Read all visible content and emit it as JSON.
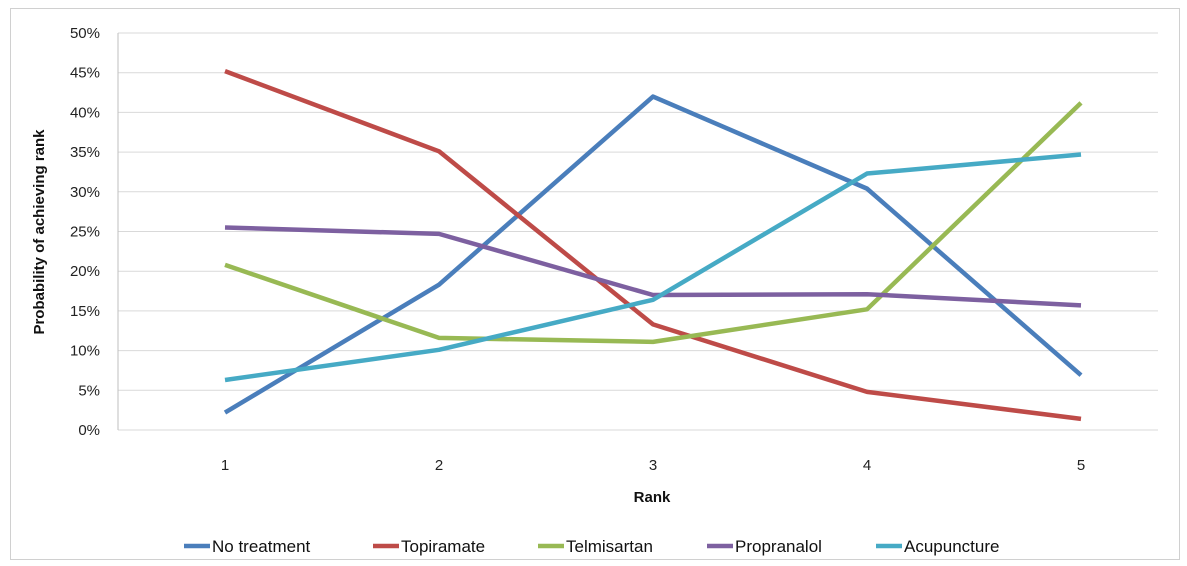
{
  "chart_data": {
    "type": "line",
    "xlabel": "Rank",
    "ylabel": "Probability of achieving rank",
    "x": [
      1,
      2,
      3,
      4,
      5
    ],
    "ylim": [
      0,
      50
    ],
    "yticks": [
      "0%",
      "5%",
      "10%",
      "15%",
      "20%",
      "25%",
      "30%",
      "35%",
      "40%",
      "45%",
      "50%"
    ],
    "xticks": [
      "1",
      "2",
      "3",
      "4",
      "5"
    ],
    "grid": "horizontal",
    "legend_position": "bottom",
    "series": [
      {
        "name": "No treatment",
        "color": "#4a7ebb",
        "values": [
          2.2,
          18.3,
          42.0,
          30.4,
          6.9
        ]
      },
      {
        "name": "Topiramate",
        "color": "#be4b48",
        "values": [
          45.2,
          35.1,
          13.3,
          4.8,
          1.4
        ]
      },
      {
        "name": "Telmisartan",
        "color": "#98b954",
        "values": [
          20.8,
          11.6,
          11.1,
          15.2,
          41.2
        ]
      },
      {
        "name": "Propranalol",
        "color": "#7d60a0",
        "values": [
          25.5,
          24.7,
          17.0,
          17.1,
          15.7
        ]
      },
      {
        "name": "Acupuncture",
        "color": "#46aac5",
        "values": [
          6.3,
          10.1,
          16.4,
          32.3,
          34.7
        ]
      }
    ]
  }
}
